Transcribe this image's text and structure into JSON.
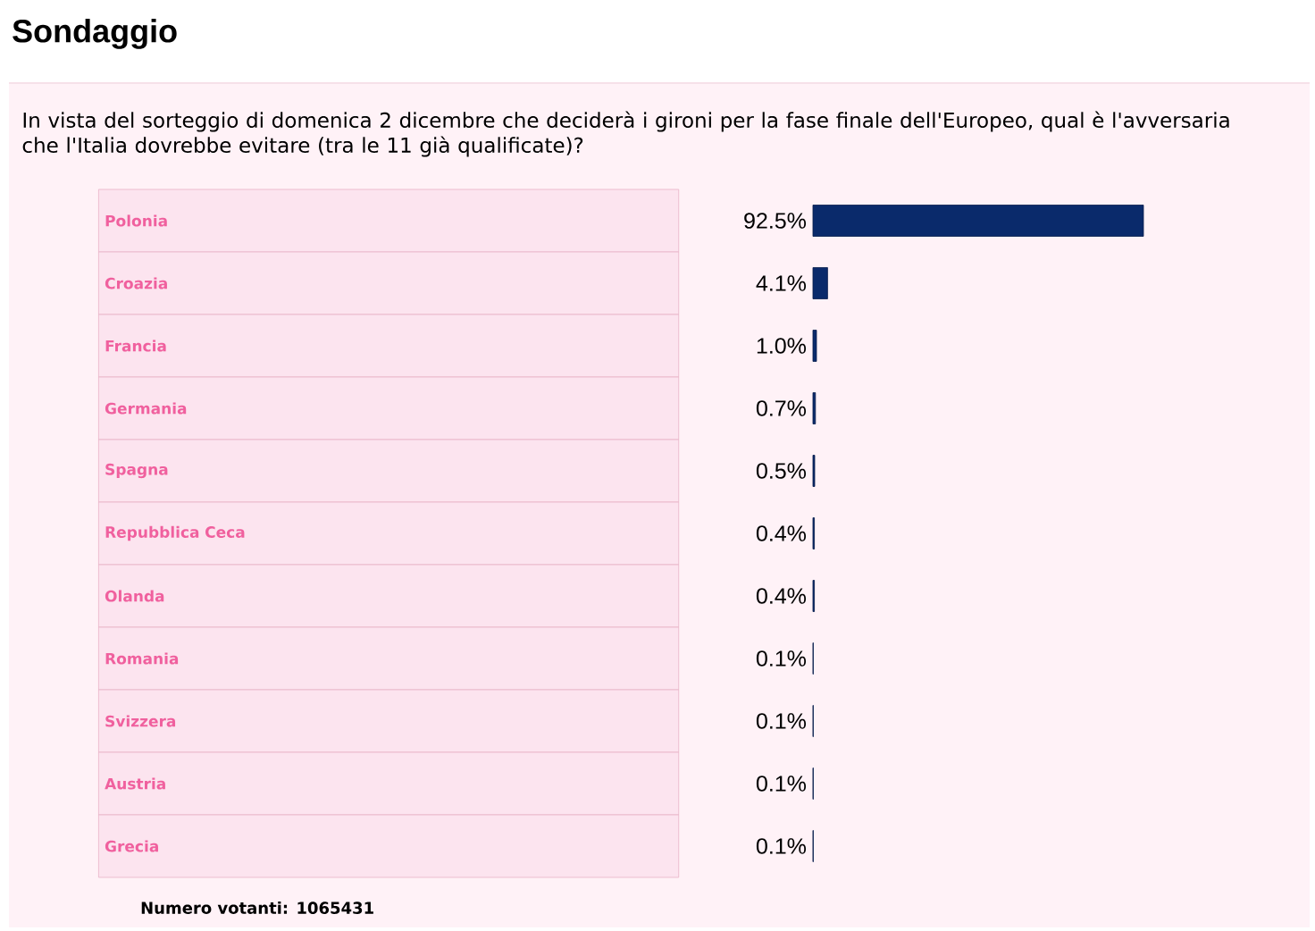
{
  "chart_data": {
    "type": "bar",
    "orientation": "horizontal",
    "title": "Sondaggio",
    "subtitle": "In vista del sorteggio di domenica 2 dicembre che deciderà i gironi per la fase finale dell'Europeo, qual è l'avversaria che l'Italia dovrebbe evitare (tra le 11 già qualificate)?",
    "categories": [
      "Polonia",
      "Croazia",
      "Francia",
      "Germania",
      "Spagna",
      "Repubblica Ceca",
      "Olanda",
      "Romania",
      "Svizzera",
      "Austria",
      "Grecia"
    ],
    "values": [
      92.5,
      4.1,
      1.0,
      0.7,
      0.5,
      0.4,
      0.4,
      0.1,
      0.1,
      0.1,
      0.1
    ],
    "value_labels": [
      "92.5%",
      "4.1%",
      "1.0%",
      "0.7%",
      "0.5%",
      "0.4%",
      "0.4%",
      "0.1%",
      "0.1%",
      "0.1%",
      "0.1%"
    ],
    "color": "#0a2a6b",
    "annotations": [
      "Numero votanti: 1065431"
    ]
  }
}
